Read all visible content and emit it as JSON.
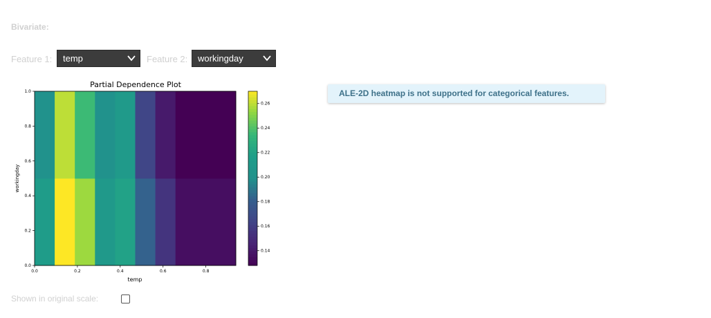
{
  "section": {
    "title": "Bivariate:"
  },
  "feature1": {
    "label": "Feature 1:",
    "value": "temp"
  },
  "feature2": {
    "label": "Feature 2:",
    "value": "workingday"
  },
  "original_scale": {
    "label": "Shown in original scale:",
    "checked": false
  },
  "alert": {
    "text": "ALE-2D heatmap is not supported for categorical features."
  },
  "chart_data": {
    "type": "heatmap",
    "title": "Partial Dependence Plot",
    "xlabel": "temp",
    "ylabel": "workingday",
    "x_edges": [
      0.0,
      0.094,
      0.188,
      0.282,
      0.376,
      0.47,
      0.564,
      0.658,
      0.94
    ],
    "y_edges": [
      0.0,
      0.5,
      1.0
    ],
    "xlim": [
      0.0,
      0.94
    ],
    "ylim": [
      0.0,
      1.0
    ],
    "x_ticks": [
      "0.0",
      "0.2",
      "0.4",
      "0.6",
      "0.8"
    ],
    "y_ticks": [
      "0.0",
      "0.2",
      "0.4",
      "0.6",
      "0.8",
      "1.0"
    ],
    "values": [
      [
        0.215,
        0.27,
        0.255,
        0.21,
        0.22,
        0.183,
        0.155,
        0.135
      ],
      [
        0.201,
        0.26,
        0.236,
        0.201,
        0.212,
        0.165,
        0.141,
        0.128
      ]
    ],
    "colorbar": {
      "min": 0.128,
      "max": 0.27,
      "ticks": [
        "0.14",
        "0.16",
        "0.18",
        "0.20",
        "0.22",
        "0.24",
        "0.26"
      ],
      "colormap": "viridis"
    }
  }
}
